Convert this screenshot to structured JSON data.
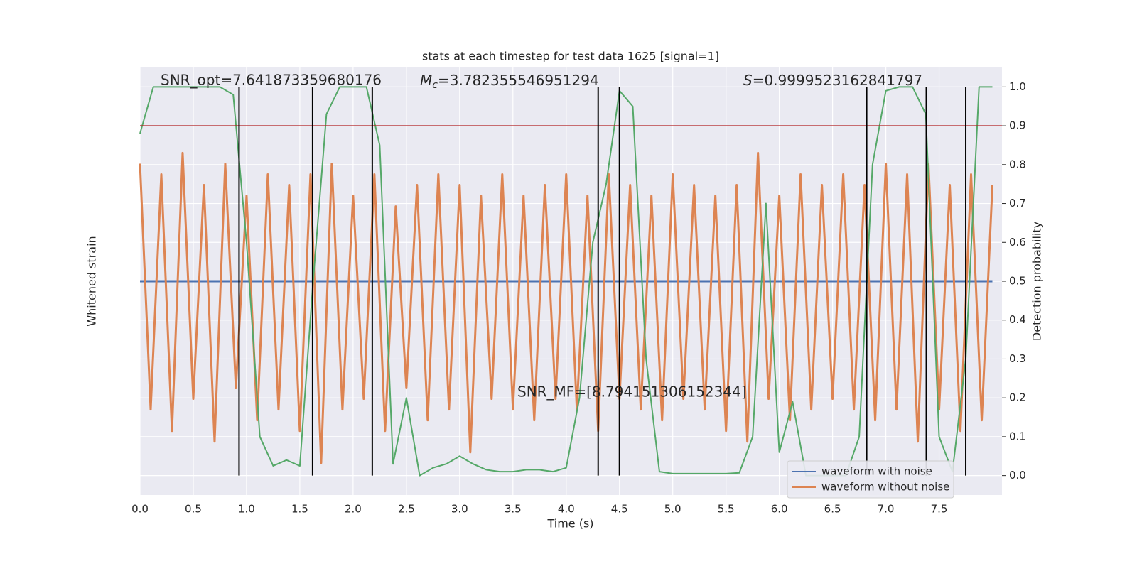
{
  "chart_data": {
    "type": "line",
    "title": "stats at each timestep for test data 1625 [signal=1]",
    "xlabel": "Time (s)",
    "ylabel": "Whitened strain",
    "y2label": "Detection probability",
    "xlim": [
      0,
      8.09
    ],
    "xticks": [
      {
        "value": 0,
        "label": "0.0"
      },
      0.5,
      {
        "value": 1,
        "label": "1.0"
      },
      1.5,
      {
        "value": 2,
        "label": "2.0"
      },
      2.5,
      {
        "value": 3,
        "label": "3.0"
      },
      3.5,
      {
        "value": 4,
        "label": "4.0"
      },
      4.5,
      {
        "value": 5,
        "label": "5.0"
      },
      5.5,
      {
        "value": 6,
        "label": "6.0"
      },
      6.5,
      {
        "value": 7,
        "label": "7.0"
      },
      7.5
    ],
    "ylim": [
      -1,
      1
    ],
    "y2lim": [
      -0.05,
      1.05
    ],
    "y2ticks": [
      {
        "value": 0,
        "label": "0.0"
      },
      0.1,
      0.2,
      0.3,
      0.4,
      0.5,
      0.6,
      0.7,
      0.8,
      0.9,
      {
        "value": 1,
        "label": "1.0"
      }
    ],
    "grid": true,
    "legend": "lower right",
    "annotations": {
      "snr_opt": "SNR_opt=7.641873359680176",
      "mc": {
        "symbol": "M",
        "subscript": "c",
        "text": "=3.782355546951294"
      },
      "s": {
        "symbol": "S",
        "text": "=0.9999523162841797"
      },
      "snr_mf": "SNR_MF=[8.794151306152344]"
    },
    "threshold": {
      "value": 0.9,
      "color": "#b22222"
    },
    "events": [
      0.93,
      1.62,
      2.18,
      4.3,
      4.5,
      6.82,
      7.38,
      7.75
    ],
    "wave_x": [
      0,
      0.1,
      0.2,
      0.3,
      0.4,
      0.5,
      0.6,
      0.7,
      0.8,
      0.9,
      1.0,
      1.1,
      1.2,
      1.3,
      1.4,
      1.5,
      1.6,
      1.7,
      1.8,
      1.9,
      2.0,
      2.1,
      2.2,
      2.3,
      2.4,
      2.5,
      2.6,
      2.7,
      2.8,
      2.9,
      3.0,
      3.1,
      3.2,
      3.3,
      3.4,
      3.5,
      3.6,
      3.7,
      3.8,
      3.9,
      4.0,
      4.1,
      4.2,
      4.3,
      4.4,
      4.5,
      4.6,
      4.7,
      4.8,
      4.9,
      5.0,
      5.1,
      5.2,
      5.3,
      5.4,
      5.5,
      5.6,
      5.7,
      5.8,
      5.9,
      6.0,
      6.1,
      6.2,
      6.3,
      6.4,
      6.5,
      6.6,
      6.7,
      6.8,
      6.9,
      7.0,
      7.1,
      7.2,
      7.3,
      7.4,
      7.5,
      7.6,
      7.7,
      7.8,
      7.9,
      8.0
    ],
    "series": [
      {
        "name": "waveform with noise",
        "color": "#4c72b0",
        "values": [
          0,
          0,
          0,
          0,
          0,
          0,
          0,
          0,
          0,
          0,
          0,
          0,
          0,
          0,
          0,
          0,
          0,
          0,
          0,
          0,
          0,
          0,
          0,
          0,
          0,
          0,
          0,
          0,
          0,
          0,
          0,
          0,
          0,
          0,
          0,
          0,
          0,
          0,
          0,
          0,
          0,
          0,
          0,
          0,
          0,
          0,
          0,
          0,
          0,
          0,
          0,
          0,
          0,
          0,
          0,
          0,
          0,
          0,
          0,
          0,
          0,
          0,
          0,
          0,
          0,
          0,
          0,
          0,
          0,
          0,
          0,
          0,
          0,
          0,
          0,
          0,
          0,
          0,
          0,
          0,
          0
        ]
      },
      {
        "name": "waveform without noise",
        "color": "#dd8452",
        "values": [
          0.55,
          -0.6,
          0.5,
          -0.7,
          0.6,
          -0.55,
          0.45,
          -0.75,
          0.55,
          -0.5,
          0.4,
          -0.65,
          0.5,
          -0.6,
          0.45,
          -0.7,
          0.5,
          -0.85,
          0.55,
          -0.6,
          0.4,
          -0.55,
          0.5,
          -0.7,
          0.35,
          -0.5,
          0.45,
          -0.65,
          0.5,
          -0.6,
          0.45,
          -0.8,
          0.4,
          -0.55,
          0.5,
          -0.6,
          0.4,
          -0.65,
          0.45,
          -0.55,
          0.5,
          -0.6,
          0.4,
          -0.7,
          0.5,
          -0.55,
          0.45,
          -0.6,
          0.4,
          -0.65,
          0.5,
          -0.55,
          0.45,
          -0.6,
          0.4,
          -0.7,
          0.45,
          -0.75,
          0.6,
          -0.55,
          0.4,
          -0.65,
          0.5,
          -0.6,
          0.45,
          -0.55,
          0.5,
          -0.6,
          0.45,
          -0.65,
          0.55,
          -0.6,
          0.5,
          -0.75,
          0.55,
          -0.6,
          0.45,
          -0.7,
          0.5,
          -0.65,
          0.45
        ]
      },
      {
        "name": null,
        "color": "#55a868",
        "axis": "y2",
        "x": [
          0,
          0.125,
          0.25,
          0.375,
          0.5,
          0.625,
          0.75,
          0.875,
          1.0,
          1.125,
          1.25,
          1.375,
          1.5,
          1.625,
          1.75,
          1.875,
          2.0,
          2.125,
          2.25,
          2.375,
          2.5,
          2.625,
          2.75,
          2.875,
          3.0,
          3.125,
          3.25,
          3.375,
          3.5,
          3.625,
          3.75,
          3.875,
          4.0,
          4.125,
          4.25,
          4.375,
          4.5,
          4.625,
          4.75,
          4.875,
          5.0,
          5.125,
          5.25,
          5.375,
          5.5,
          5.625,
          5.75,
          5.875,
          6.0,
          6.125,
          6.25,
          6.375,
          6.5,
          6.625,
          6.75,
          6.875,
          7.0,
          7.125,
          7.25,
          7.375,
          7.5,
          7.625,
          7.75,
          7.875,
          8.0
        ],
        "values": [
          0.88,
          1.0,
          1.0,
          1.0,
          1.0,
          1.0,
          1.0,
          0.98,
          0.6,
          0.1,
          0.025,
          0.04,
          0.025,
          0.5,
          0.93,
          1.0,
          1.0,
          1.0,
          0.85,
          0.03,
          0.2,
          0.0,
          0.02,
          0.03,
          0.05,
          0.03,
          0.015,
          0.01,
          0.01,
          0.015,
          0.015,
          0.01,
          0.02,
          0.2,
          0.6,
          0.75,
          0.99,
          0.95,
          0.3,
          0.01,
          0.005,
          0.005,
          0.005,
          0.005,
          0.005,
          0.007,
          0.1,
          0.7,
          0.06,
          0.19,
          0.0,
          0.0,
          0.0,
          0.0,
          0.1,
          0.8,
          0.99,
          1.0,
          1.0,
          0.93,
          0.1,
          0.01,
          0.3,
          1.0,
          1.0
        ]
      }
    ]
  }
}
